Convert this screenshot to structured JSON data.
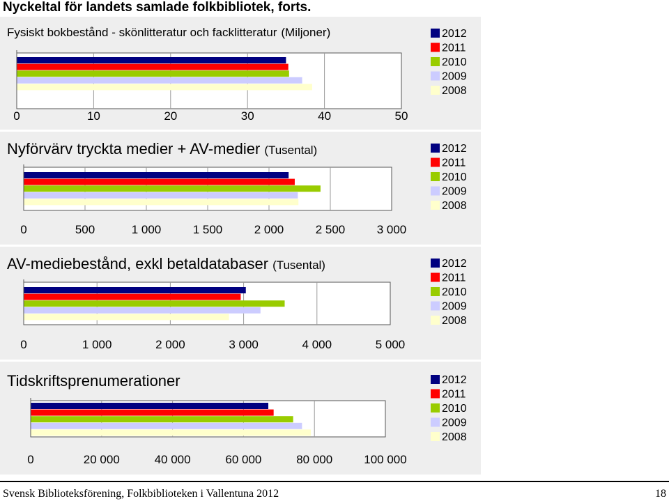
{
  "page_title": "Nyckeltal för landets samlade folkbibliotek, forts.",
  "footer": {
    "text": "Svensk Biblioteksförening, Folkbiblioteken i Vallentuna 2012",
    "page_number": "18"
  },
  "legend_years": [
    "2012",
    "2011",
    "2010",
    "2009",
    "2008"
  ],
  "series_colors": [
    "#000080",
    "#ff0000",
    "#99cc00",
    "#ccccff",
    "#ffffcc"
  ],
  "chart_data": [
    {
      "type": "bar",
      "orientation": "horizontal",
      "title": "Fysiskt bokbestånd - skönlitteratur och facklitteratur",
      "title_unit": "(Miljoner)",
      "xlim": [
        0,
        50
      ],
      "ticks": [
        "0",
        "10",
        "20",
        "30",
        "40",
        "50"
      ],
      "tick_values": [
        0,
        10,
        20,
        30,
        40,
        50
      ],
      "legend_position": "right",
      "series": [
        {
          "name": "2012",
          "value": 35.0
        },
        {
          "name": "2011",
          "value": 35.3
        },
        {
          "name": "2010",
          "value": 35.4
        },
        {
          "name": "2009",
          "value": 37.1
        },
        {
          "name": "2008",
          "value": 38.4
        }
      ]
    },
    {
      "type": "bar",
      "orientation": "horizontal",
      "title": "Nyförvärv tryckta medier + AV-medier",
      "title_unit": "(Tusental)",
      "xlim": [
        0,
        3000
      ],
      "ticks": [
        "0",
        "500",
        "1 000",
        "1 500",
        "2 000",
        "2 500",
        "3 000"
      ],
      "tick_values": [
        0,
        500,
        1000,
        1500,
        2000,
        2500,
        3000
      ],
      "legend_position": "right",
      "series": [
        {
          "name": "2012",
          "value": 2160
        },
        {
          "name": "2011",
          "value": 2210
        },
        {
          "name": "2010",
          "value": 2420
        },
        {
          "name": "2009",
          "value": 2235
        },
        {
          "name": "2008",
          "value": 2240
        }
      ]
    },
    {
      "type": "bar",
      "orientation": "horizontal",
      "title": "AV-mediebestånd, exkl betaldatabaser",
      "title_unit": "(Tusental)",
      "xlim": [
        0,
        5000
      ],
      "ticks": [
        "0",
        "1 000",
        "2 000",
        "3 000",
        "4 000",
        "5 000"
      ],
      "tick_values": [
        0,
        1000,
        2000,
        3000,
        4000,
        5000
      ],
      "legend_position": "right",
      "series": [
        {
          "name": "2012",
          "value": 3030
        },
        {
          "name": "2011",
          "value": 2960
        },
        {
          "name": "2010",
          "value": 3560
        },
        {
          "name": "2009",
          "value": 3230
        },
        {
          "name": "2008",
          "value": 2800
        }
      ]
    },
    {
      "type": "bar",
      "orientation": "horizontal",
      "title": "Tidskriftsprenumerationer",
      "title_unit": "",
      "xlim": [
        0,
        100000
      ],
      "ticks": [
        "0",
        "20 000",
        "40 000",
        "60 000",
        "80 000",
        "100 000"
      ],
      "tick_values": [
        0,
        20000,
        40000,
        60000,
        80000,
        100000
      ],
      "legend_position": "right",
      "series": [
        {
          "name": "2012",
          "value": 67000
        },
        {
          "name": "2011",
          "value": 68500
        },
        {
          "name": "2010",
          "value": 74000
        },
        {
          "name": "2009",
          "value": 76500
        },
        {
          "name": "2008",
          "value": 79000
        }
      ]
    }
  ]
}
